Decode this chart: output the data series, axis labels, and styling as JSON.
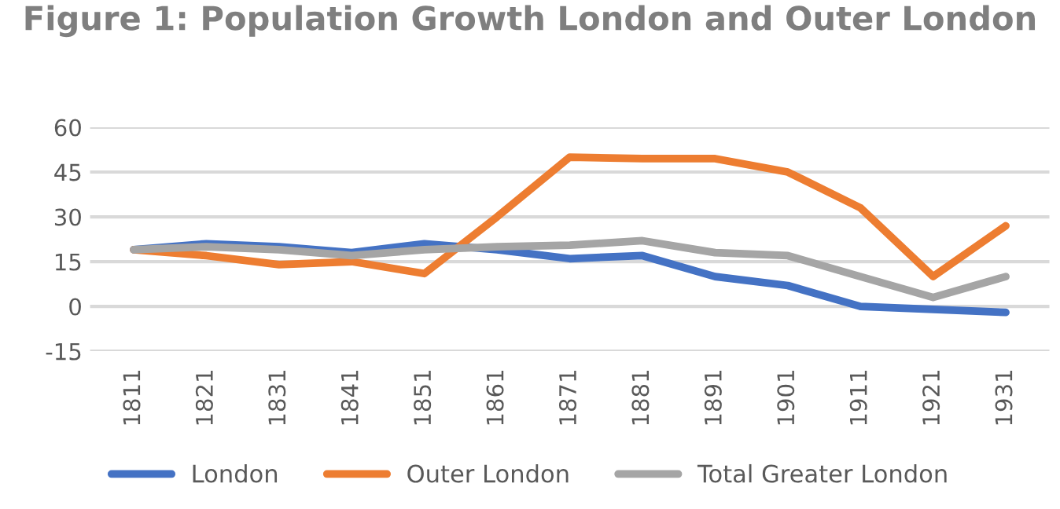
{
  "chart_data": {
    "type": "line",
    "title": "Figure 1: Population Growth London and Outer London",
    "categories": [
      "1811",
      "1821",
      "1831",
      "1841",
      "1851",
      "1861",
      "1871",
      "1881",
      "1891",
      "1901",
      "1911",
      "1921",
      "1931"
    ],
    "series": [
      {
        "name": "London",
        "color": "#4472c4",
        "values": [
          19,
          21,
          20,
          18,
          21,
          19,
          16,
          17,
          10,
          7,
          0,
          -1,
          -2
        ]
      },
      {
        "name": "Outer London",
        "color": "#ed7d31",
        "values": [
          19,
          17,
          14,
          15,
          11,
          30,
          50,
          49.5,
          49.5,
          45,
          33,
          10,
          27
        ]
      },
      {
        "name": "Total Greater London",
        "color": "#a5a5a5",
        "values": [
          19,
          20,
          19,
          17,
          19,
          20,
          20.5,
          22,
          18,
          17,
          10,
          3,
          10
        ]
      }
    ],
    "ylim": [
      -15,
      60
    ],
    "yticks": [
      -15,
      0,
      15,
      30,
      45,
      60
    ],
    "grid": "y",
    "legend": "bottom",
    "marker": "none",
    "line_style": "solid"
  }
}
